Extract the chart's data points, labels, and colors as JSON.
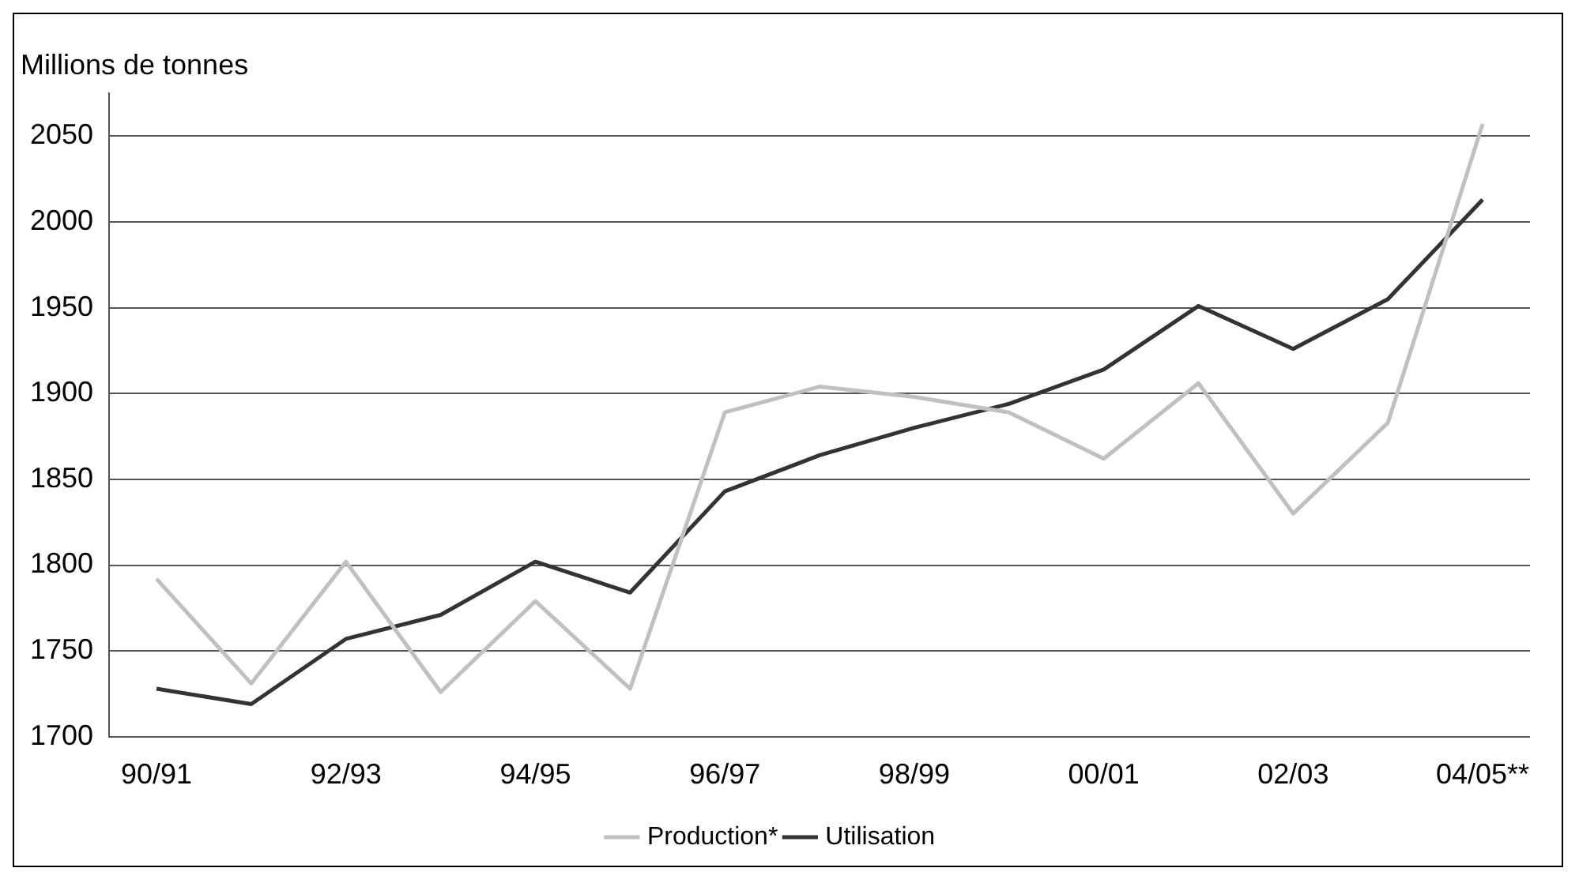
{
  "chart_data": {
    "type": "line",
    "ylabel": "Millions de tonnes",
    "categories": [
      "90/91",
      null,
      "92/93",
      null,
      "94/95",
      null,
      "96/97",
      null,
      "98/99",
      null,
      "00/01",
      null,
      "02/03",
      null,
      "04/05**"
    ],
    "series": [
      {
        "name": "Production*",
        "color": "#c0c0c0",
        "values": [
          1792,
          1731,
          1802,
          1726,
          1779,
          1728,
          1889,
          1904,
          1898,
          1889,
          1862,
          1906,
          1830,
          1883,
          2057
        ]
      },
      {
        "name": "Utilisation",
        "color": "#333333",
        "values": [
          1728,
          1719,
          1757,
          1771,
          1802,
          1784,
          1843,
          1864,
          1880,
          1894,
          1914,
          1951,
          1926,
          1955,
          2013
        ]
      }
    ],
    "ylim": [
      1700,
      2075
    ],
    "yticks": [
      1700,
      1750,
      1800,
      1850,
      1900,
      1950,
      2000,
      2050
    ],
    "grid": "y",
    "legend": "bottom",
    "marker": "none",
    "line_style": "solid"
  }
}
